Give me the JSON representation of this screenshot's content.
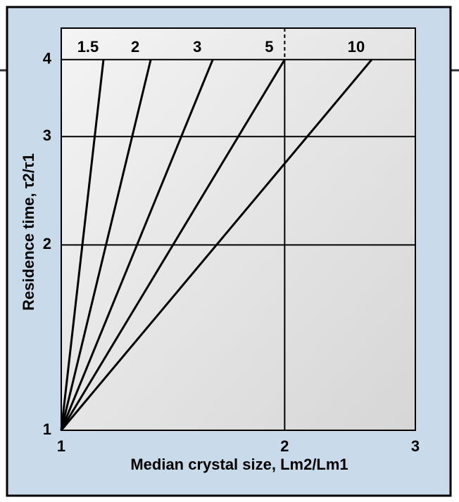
{
  "chart_data": {
    "type": "line",
    "x_label": "Median crystal size, Lm2/Lm1",
    "y_label": "Residence time, τ2/τ1",
    "xscale": "log",
    "yscale": "log",
    "xlim": [
      1,
      3
    ],
    "ylim": [
      1,
      4.5
    ],
    "xticks": [
      1,
      2,
      3
    ],
    "yticks": [
      1,
      2,
      3,
      4
    ],
    "grid": true,
    "series": [
      {
        "name": "1.5",
        "color": "#000000",
        "x": [
          1,
          1.14
        ],
        "values": [
          1,
          4
        ]
      },
      {
        "name": "2",
        "color": "#000000",
        "x": [
          1,
          1.32
        ],
        "values": [
          1,
          4
        ]
      },
      {
        "name": "3",
        "color": "#000000",
        "x": [
          1,
          1.6
        ],
        "values": [
          1,
          4
        ]
      },
      {
        "name": "5",
        "color": "#000000",
        "x": [
          1,
          2
        ],
        "values": [
          1,
          4
        ]
      },
      {
        "name": "10",
        "color": "#000000",
        "x": [
          1,
          2.62
        ],
        "values": [
          1,
          4
        ]
      }
    ]
  }
}
